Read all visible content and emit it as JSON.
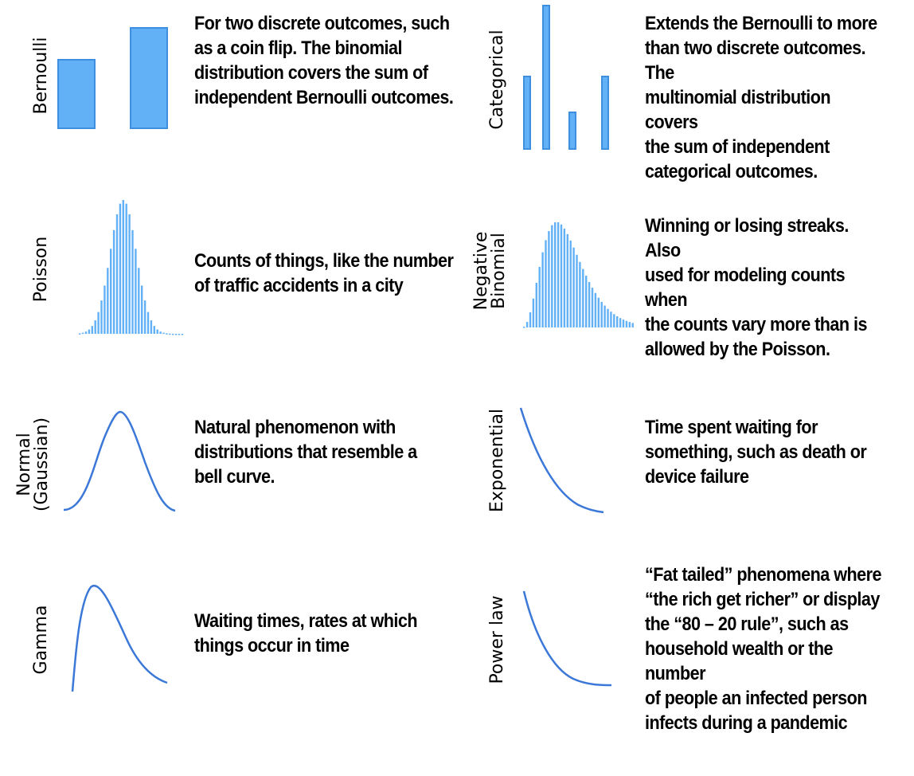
{
  "colors": {
    "fill": "#62b0f6",
    "stroke": "#3f8fe0",
    "curve": "#3b78d8"
  },
  "items": [
    {
      "label": [
        "Bernoulli"
      ],
      "description": [
        "For two discrete outcomes, such",
        "as a coin flip. The binomial",
        "distribution covers the sum of",
        "independent Bernoulli outcomes."
      ]
    },
    {
      "label": [
        "Categorical"
      ],
      "description": [
        "Extends the Bernoulli to more",
        "than two discrete outcomes. The",
        "multinomial distribution covers",
        "the sum of independent",
        "categorical outcomes."
      ]
    },
    {
      "label": [
        "Poisson"
      ],
      "description": [
        "Counts of things, like the number",
        "of traffic accidents in a city"
      ]
    },
    {
      "label": [
        "Negative",
        "Binomial"
      ],
      "description": [
        "Winning or losing streaks. Also",
        "used for modeling counts when",
        "the counts vary more than is",
        "allowed by the Poisson."
      ]
    },
    {
      "label": [
        "Normal",
        "(Gaussian)"
      ],
      "description": [
        "Natural phenomenon with",
        "distributions that resemble a",
        "bell curve."
      ]
    },
    {
      "label": [
        "Exponential"
      ],
      "description": [
        "Time spent waiting for",
        "something, such as death or",
        "device failure"
      ]
    },
    {
      "label": [
        "Gamma"
      ],
      "description": [
        "Waiting times, rates at which",
        "things occur in time"
      ]
    },
    {
      "label": [
        "Power law"
      ],
      "description": [
        "“Fat tailed” phenomena where",
        "“the rich get richer” or display",
        "the “80 – 20 rule”, such as",
        "household wealth or the number",
        "of people an infected person",
        "infects during a pandemic"
      ]
    }
  ]
}
